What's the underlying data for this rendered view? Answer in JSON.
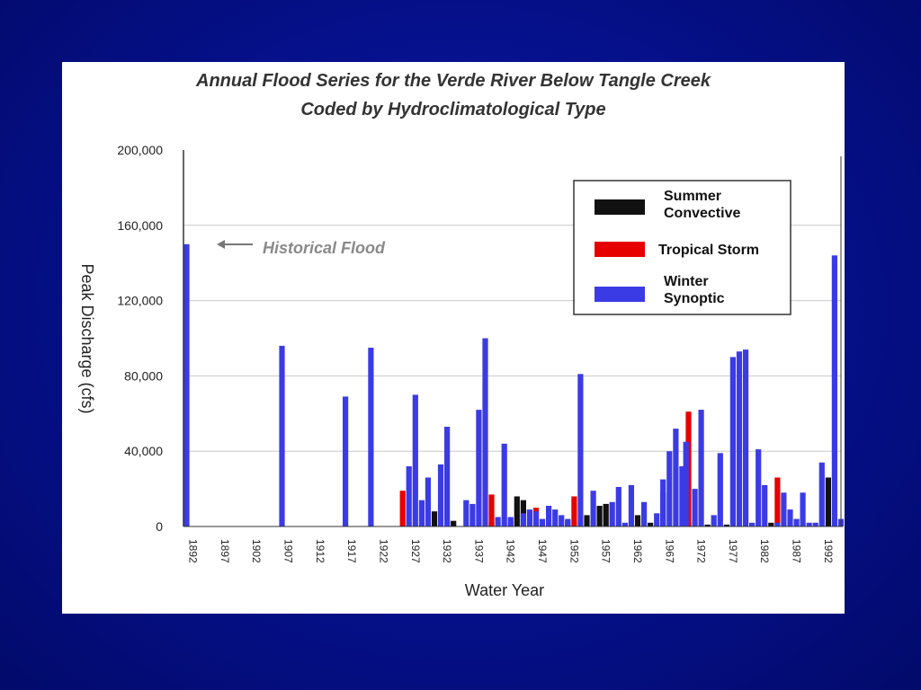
{
  "chart_data": {
    "type": "bar",
    "title": "Annual Flood Series for the Verde River Below Tangle Creek",
    "subtitle": "Coded by Hydroclimatological Type",
    "xlabel": "Water Year",
    "ylabel": "Peak Discharge (cfs)",
    "ylim": [
      0,
      200000
    ],
    "yticks": [
      "0",
      "40,000",
      "80,000",
      "120,000",
      "160,000",
      "200,000"
    ],
    "ytick_values": [
      0,
      40000,
      80000,
      120000,
      160000,
      200000
    ],
    "xticks": [
      "1892",
      "1897",
      "1902",
      "1907",
      "1912",
      "1917",
      "1922",
      "1927",
      "1932",
      "1937",
      "1942",
      "1947",
      "1952",
      "1957",
      "1962",
      "1967",
      "1972",
      "1977",
      "1982",
      "1987",
      "1992"
    ],
    "xlim": [
      1890.5,
      1994
    ],
    "grid": "horizontal",
    "legend_position": "top-right",
    "annotation": {
      "text": "Historical Flood",
      "target_year": 1891,
      "target_value": 150000
    },
    "series": [
      {
        "name": "Summer Convective",
        "color": "#111111",
        "points": [
          [
            1930,
            8000
          ],
          [
            1932,
            3000
          ],
          [
            1933,
            3000
          ],
          [
            1939,
            2000
          ],
          [
            1943,
            16000
          ],
          [
            1944,
            14000
          ],
          [
            1951,
            3000
          ],
          [
            1954,
            6000
          ],
          [
            1956,
            11000
          ],
          [
            1957,
            12000
          ],
          [
            1962,
            6000
          ],
          [
            1964,
            2000
          ],
          [
            1966,
            18000
          ],
          [
            1970,
            2000
          ],
          [
            1973,
            1000
          ],
          [
            1976,
            1000
          ],
          [
            1983,
            2000
          ],
          [
            1992,
            26000
          ]
        ]
      },
      {
        "name": "Tropical Storm",
        "color": "#e60000",
        "points": [
          [
            1925,
            19000
          ],
          [
            1939,
            17000
          ],
          [
            1942,
            3000
          ],
          [
            1946,
            10000
          ],
          [
            1952,
            16000
          ],
          [
            1970,
            61000
          ],
          [
            1984,
            26000
          ]
        ]
      },
      {
        "name": "Winter Synoptic",
        "color": "#3b3be6",
        "points": [
          [
            1891,
            150000
          ],
          [
            1906,
            96000
          ],
          [
            1916,
            69000
          ],
          [
            1920,
            95000
          ],
          [
            1926,
            32000
          ],
          [
            1927,
            70000
          ],
          [
            1928,
            14000
          ],
          [
            1929,
            26000
          ],
          [
            1931,
            33000
          ],
          [
            1932,
            53000
          ],
          [
            1935,
            14000
          ],
          [
            1936,
            12000
          ],
          [
            1937,
            62000
          ],
          [
            1938,
            100000
          ],
          [
            1940,
            5000
          ],
          [
            1941,
            44000
          ],
          [
            1942,
            5000
          ],
          [
            1944,
            7000
          ],
          [
            1945,
            9000
          ],
          [
            1946,
            8000
          ],
          [
            1947,
            4000
          ],
          [
            1948,
            11000
          ],
          [
            1949,
            9000
          ],
          [
            1950,
            6000
          ],
          [
            1951,
            4000
          ],
          [
            1953,
            81000
          ],
          [
            1955,
            19000
          ],
          [
            1958,
            13000
          ],
          [
            1959,
            21000
          ],
          [
            1960,
            2000
          ],
          [
            1961,
            22000
          ],
          [
            1963,
            13000
          ],
          [
            1965,
            7000
          ],
          [
            1966,
            25000
          ],
          [
            1967,
            40000
          ],
          [
            1968,
            52000
          ],
          [
            1969,
            32000
          ],
          [
            1969.6,
            45000
          ],
          [
            1971,
            20000
          ],
          [
            1972,
            62000
          ],
          [
            1974,
            6000
          ],
          [
            1975,
            39000
          ],
          [
            1977,
            90000
          ],
          [
            1978,
            93000
          ],
          [
            1979,
            94000
          ],
          [
            1980,
            2000
          ],
          [
            1981,
            41000
          ],
          [
            1982,
            22000
          ],
          [
            1984,
            2000
          ],
          [
            1985,
            18000
          ],
          [
            1986,
            9000
          ],
          [
            1987,
            4000
          ],
          [
            1988,
            18000
          ],
          [
            1989,
            2000
          ],
          [
            1990,
            2000
          ],
          [
            1991,
            34000
          ],
          [
            1993,
            144000
          ],
          [
            1994,
            4000
          ]
        ]
      }
    ]
  }
}
